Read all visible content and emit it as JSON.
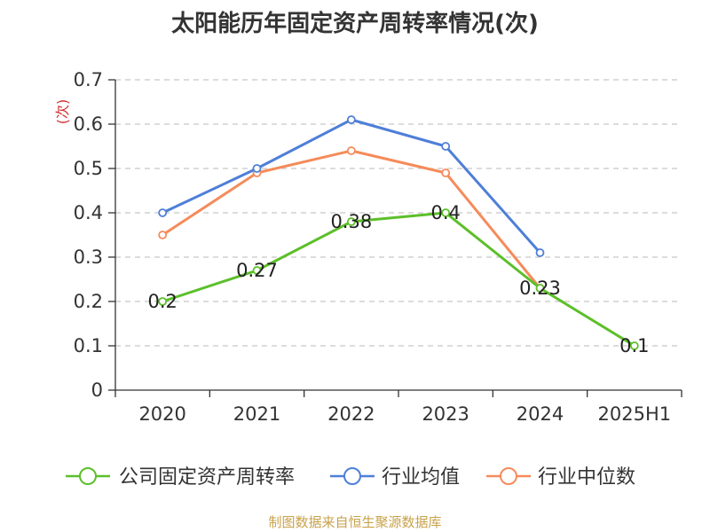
{
  "title": "太阳能历年固定资产周转率情况(次)",
  "source": "制图数据来自恒生聚源数据库",
  "chart_data": {
    "type": "line",
    "title": "太阳能历年固定资产周转率情况(次)",
    "ylabel": "(次)",
    "categories": [
      "2020",
      "2021",
      "2022",
      "2023",
      "2024",
      "2025H1"
    ],
    "ylim": [
      0,
      0.7
    ],
    "yticks": [
      0,
      0.1,
      0.2,
      0.3,
      0.4,
      0.5,
      0.6,
      0.7
    ],
    "grid": true,
    "legend": "bottom",
    "series": [
      {
        "name": "公司固定资产周转率",
        "color": "#5cbf2a",
        "values": [
          0.2,
          0.27,
          0.38,
          0.4,
          0.23,
          0.1
        ],
        "labels": [
          "0.2",
          "0.27",
          "0.38",
          "0.4",
          "0.23",
          "0.1"
        ]
      },
      {
        "name": "行业均值",
        "color": "#4e7fd8",
        "values": [
          0.4,
          0.5,
          0.61,
          0.55,
          0.31,
          null
        ]
      },
      {
        "name": "行业中位数",
        "color": "#f58b5a",
        "values": [
          0.35,
          0.49,
          0.54,
          0.49,
          0.23,
          null
        ]
      }
    ]
  }
}
